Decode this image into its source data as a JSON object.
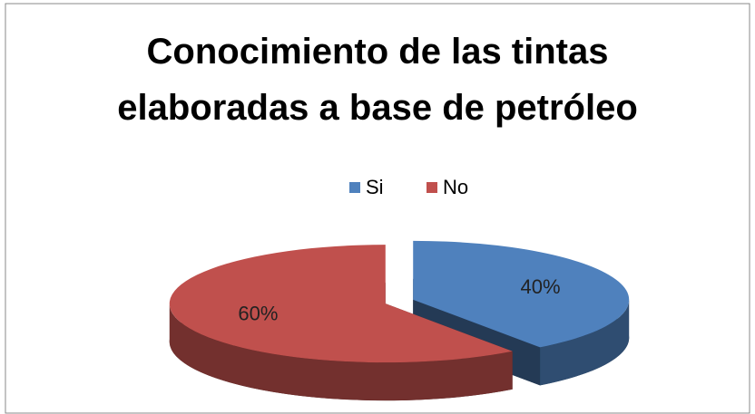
{
  "chart_data": {
    "type": "pie",
    "title": "Conocimiento de las tintas elaboradas a base de petróleo",
    "categories": [
      "Si",
      "No"
    ],
    "values": [
      40,
      60
    ],
    "value_labels": [
      "40%",
      "60%"
    ],
    "colors": [
      "#4f81bd",
      "#c0504d"
    ],
    "legend": "top"
  }
}
